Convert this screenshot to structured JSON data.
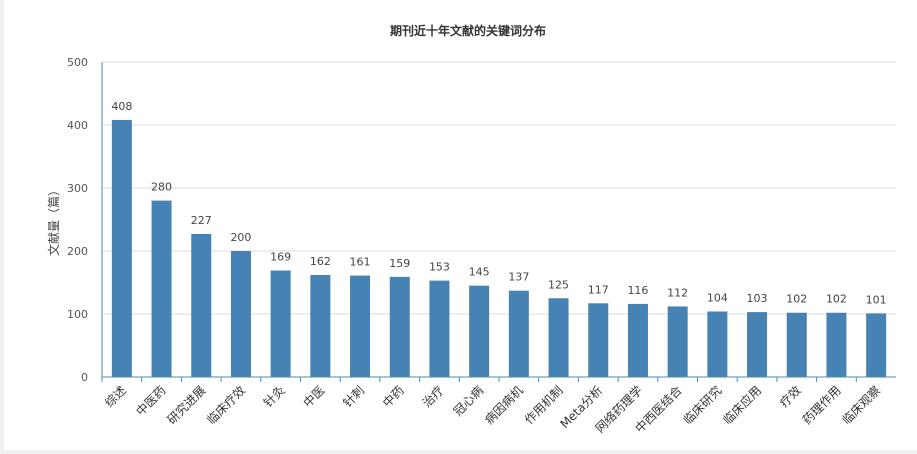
{
  "chart_data": {
    "type": "bar",
    "title": "期刊近十年文献的关键词分布",
    "ylabel": "文献量（篇）",
    "xlabel": "",
    "ylim": [
      0,
      500
    ],
    "yticks": [
      0,
      100,
      200,
      300,
      400,
      500
    ],
    "grid": true,
    "bar_color": "#4682b4",
    "categories": [
      "综述",
      "中医药",
      "研究进展",
      "临床疗效",
      "针灸",
      "中医",
      "针刺",
      "中药",
      "治疗",
      "冠心病",
      "病因病机",
      "作用机制",
      "Meta分析",
      "网络药理学",
      "中西医结合",
      "临床研究",
      "临床应用",
      "疗效",
      "药理作用",
      "临床观察"
    ],
    "values": [
      408,
      280,
      227,
      200,
      169,
      162,
      161,
      159,
      153,
      145,
      137,
      125,
      117,
      116,
      112,
      104,
      103,
      102,
      102,
      101
    ]
  }
}
